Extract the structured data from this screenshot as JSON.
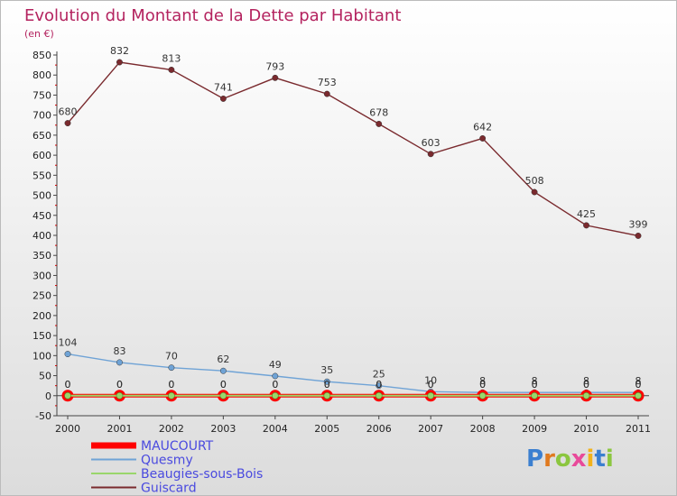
{
  "chart_data": {
    "type": "line",
    "title": "Evolution du Montant de la Dette par Habitant",
    "subtitle": "(en €)",
    "xlabel": "",
    "ylabel": "",
    "x": [
      "2000",
      "2001",
      "2002",
      "2003",
      "2004",
      "2005",
      "2006",
      "2007",
      "2008",
      "2009",
      "2010",
      "2011"
    ],
    "ylim": [
      -50,
      850
    ],
    "yticks": [
      -50,
      0,
      50,
      100,
      150,
      200,
      250,
      300,
      350,
      400,
      450,
      500,
      550,
      600,
      650,
      700,
      750,
      800,
      850
    ],
    "grid": false,
    "legend_position": "bottom-left",
    "series": [
      {
        "name": "MAUCOURT",
        "color": "#ff0000",
        "values": [
          0,
          0,
          0,
          0,
          0,
          0,
          0,
          0,
          0,
          0,
          0,
          0
        ],
        "labels": [
          "0",
          "0",
          "0",
          "0",
          "0",
          "0",
          "0",
          "0",
          "0",
          "0",
          "0",
          "0"
        ]
      },
      {
        "name": "Quesmy",
        "color": "#6fa3d6",
        "values": [
          104,
          83,
          70,
          62,
          49,
          35,
          25,
          10,
          8,
          8,
          8,
          8
        ],
        "labels": [
          "104",
          "83",
          "70",
          "62",
          "49",
          "35",
          "25",
          "10",
          "8",
          "8",
          "8",
          "8"
        ]
      },
      {
        "name": "Beaugies-sous-Bois",
        "color": "#9ad66b",
        "values": [
          0,
          0,
          0,
          0,
          0,
          0,
          0,
          0,
          0,
          0,
          0,
          0
        ],
        "labels": [
          "0",
          "0",
          "0",
          "0",
          "0",
          "0",
          "0",
          "0",
          "0",
          "0",
          "0",
          "0"
        ]
      },
      {
        "name": "Guiscard",
        "color": "#7a2a2e",
        "values": [
          680,
          832,
          813,
          741,
          793,
          753,
          678,
          603,
          642,
          508,
          425,
          399
        ],
        "labels": [
          "680",
          "832",
          "813",
          "741",
          "793",
          "753",
          "678",
          "603",
          "642",
          "508",
          "425",
          "399"
        ]
      }
    ]
  },
  "branding": {
    "logo_text": "Proxiti",
    "letters": [
      "P",
      "r",
      "o",
      "x",
      "i",
      "t",
      "i"
    ],
    "letter_colors": [
      "#3b7fd0",
      "#e07a1f",
      "#8bc63f",
      "#e84a9a",
      "#f2b21b",
      "#3b7fd0",
      "#8bc63f"
    ]
  }
}
